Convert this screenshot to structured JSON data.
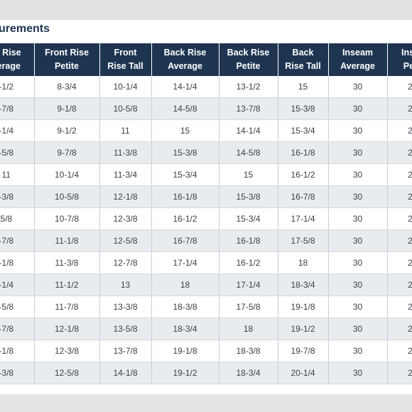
{
  "title": "urements",
  "table": {
    "headers": [
      [
        "nt Rise",
        "verage"
      ],
      [
        "Front Rise",
        "Petite"
      ],
      [
        "Front",
        "Rise Tall"
      ],
      [
        "Back Rise",
        "Average"
      ],
      [
        "Back Rise",
        "Petite"
      ],
      [
        "Back",
        "Rise Tall"
      ],
      [
        "Inseam",
        "Average"
      ],
      [
        "Inse",
        "Pet"
      ]
    ],
    "rows": [
      [
        "-1/2",
        "8-3/4",
        "10-1/4",
        "14-1/4",
        "13-1/2",
        "15",
        "30",
        "2"
      ],
      [
        "-7/8",
        "9-1/8",
        "10-5/8",
        "14-5/8",
        "13-7/8",
        "15-3/8",
        "30",
        "2"
      ],
      [
        "-1/4",
        "9-1/2",
        "11",
        "15",
        "14-1/4",
        "15-3/4",
        "30",
        "2"
      ],
      [
        "-5/8",
        "9-7/8",
        "11-3/8",
        "15-3/8",
        "14-5/8",
        "16-1/8",
        "30",
        "2"
      ],
      [
        "11",
        "10-1/4",
        "11-3/4",
        "15-3/4",
        "15",
        "16-1/2",
        "30",
        "2"
      ],
      [
        "-3/8",
        "10-5/8",
        "12-1/8",
        "16-1/8",
        "15-3/8",
        "16-7/8",
        "30",
        "2"
      ],
      [
        "5/8",
        "10-7/8",
        "12-3/8",
        "16-1/2",
        "15-3/4",
        "17-1/4",
        "30",
        "2"
      ],
      [
        "-7/8",
        "11-1/8",
        "12-5/8",
        "16-7/8",
        "16-1/8",
        "17-5/8",
        "30",
        "2"
      ],
      [
        "-1/8",
        "11-3/8",
        "12-7/8",
        "17-1/4",
        "16-1/2",
        "18",
        "30",
        "2"
      ],
      [
        "-1/4",
        "11-1/2",
        "13",
        "18",
        "17-1/4",
        "18-3/4",
        "30",
        "2"
      ],
      [
        "-5/8",
        "11-7/8",
        "13-3/8",
        "18-3/8",
        "17-5/8",
        "19-1/8",
        "30",
        "2"
      ],
      [
        "-7/8",
        "12-1/8",
        "13-5/8",
        "18-3/4",
        "18",
        "19-1/2",
        "30",
        "2"
      ],
      [
        "-1/8",
        "12-3/8",
        "13-7/8",
        "19-1/8",
        "18-3/8",
        "19-7/8",
        "30",
        "2"
      ],
      [
        "-3/8",
        "12-5/8",
        "14-1/8",
        "19-1/2",
        "18-3/4",
        "20-1/4",
        "30",
        "2"
      ]
    ]
  }
}
